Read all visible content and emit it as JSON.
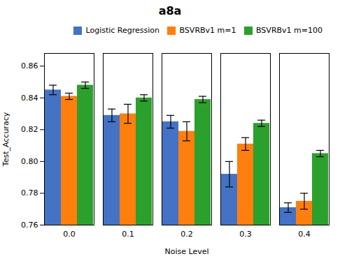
{
  "chart_data": {
    "type": "bar",
    "title": "a8a",
    "xlabel": "Noise Level",
    "ylabel": "Test_Accuracy",
    "categories": [
      "0.0",
      "0.1",
      "0.2",
      "0.3",
      "0.4"
    ],
    "series": [
      {
        "name": "Logistic Regression",
        "color": "#4472c4",
        "values": [
          0.845,
          0.829,
          0.825,
          0.792,
          0.771
        ],
        "errors": [
          0.003,
          0.004,
          0.004,
          0.008,
          0.003
        ]
      },
      {
        "name": "BSVRBv1 m=1",
        "color": "#ff7f0e",
        "values": [
          0.841,
          0.83,
          0.819,
          0.811,
          0.775
        ],
        "errors": [
          0.002,
          0.006,
          0.006,
          0.004,
          0.005
        ]
      },
      {
        "name": "BSVRBv1 m=100",
        "color": "#2ca02c",
        "values": [
          0.848,
          0.84,
          0.839,
          0.824,
          0.805
        ],
        "errors": [
          0.002,
          0.002,
          0.002,
          0.002,
          0.002
        ]
      }
    ],
    "ylim": [
      0.76,
      0.868
    ],
    "yticks": [
      0.76,
      0.78,
      {
        "value": 0.8,
        "label": "0.80"
      },
      0.82,
      0.84,
      0.86
    ],
    "grid": false,
    "legend": "upper right"
  }
}
